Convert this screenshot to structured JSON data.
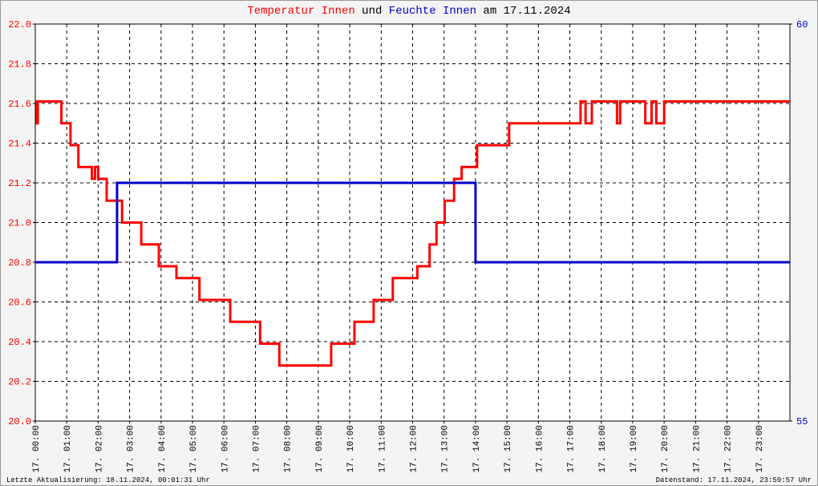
{
  "chart_data": {
    "type": "line",
    "title_connector": "und",
    "title_suffix": "am 17.11.2024",
    "footer_left": "Letzte Aktualisierung: 18.11.2024, 00:01:31 Uhr",
    "footer_right": "Datenstand: 17.11.2024, 23:59:57 Uhr",
    "grid": true,
    "xlim": [
      0,
      24
    ],
    "xticks": [
      {
        "value": 0,
        "label": "17. 00:00"
      },
      {
        "value": 1,
        "label": "17. 01:00"
      },
      {
        "value": 2,
        "label": "17. 02:00"
      },
      {
        "value": 3,
        "label": "17. 03:00"
      },
      {
        "value": 4,
        "label": "17. 04:00"
      },
      {
        "value": 5,
        "label": "17. 05:00"
      },
      {
        "value": 6,
        "label": "17. 06:00"
      },
      {
        "value": 7,
        "label": "17. 07:00"
      },
      {
        "value": 8,
        "label": "17. 08:00"
      },
      {
        "value": 9,
        "label": "17. 09:00"
      },
      {
        "value": 10,
        "label": "17. 10:00"
      },
      {
        "value": 11,
        "label": "17. 11:00"
      },
      {
        "value": 12,
        "label": "17. 12:00"
      },
      {
        "value": 13,
        "label": "17. 13:00"
      },
      {
        "value": 14,
        "label": "17. 14:00"
      },
      {
        "value": 15,
        "label": "17. 15:00"
      },
      {
        "value": 16,
        "label": "17. 16:00"
      },
      {
        "value": 17,
        "label": "17. 17:00"
      },
      {
        "value": 18,
        "label": "17. 18:00"
      },
      {
        "value": 19,
        "label": "17. 19:00"
      },
      {
        "value": 20,
        "label": "17. 20:00"
      },
      {
        "value": 21,
        "label": "17. 21:00"
      },
      {
        "value": 22,
        "label": "17. 22:00"
      },
      {
        "value": 23,
        "label": "17. 23:00"
      }
    ],
    "ylim": [
      20,
      22
    ],
    "yticks": [
      {
        "value": 20,
        "label": "20.0"
      },
      20.2,
      20.4,
      20.6,
      20.8,
      {
        "value": 21,
        "label": "21.0"
      },
      21.2,
      21.4,
      21.6,
      21.8,
      {
        "value": 22,
        "label": "22.0"
      }
    ],
    "y2lim": [
      55,
      60
    ],
    "y2ticks": [
      55,
      60
    ],
    "series": [
      {
        "name": "Temperatur Innen",
        "color": "#ff0000",
        "x": [
          0,
          0.05,
          0.05,
          0.08,
          0.08,
          0.83,
          0.83,
          1.12,
          1.12,
          1.37,
          1.37,
          1.8,
          1.8,
          1.9,
          1.9,
          2.0,
          2.0,
          2.27,
          2.27,
          2.76,
          2.76,
          3.37,
          3.37,
          3.93,
          3.93,
          4.49,
          4.49,
          5.22,
          5.22,
          6.2,
          6.2,
          7.15,
          7.15,
          7.76,
          7.76,
          9.41,
          9.41,
          10.15,
          10.15,
          10.76,
          10.76,
          11.37,
          11.37,
          12.15,
          12.15,
          12.54,
          12.54,
          12.76,
          12.76,
          13.02,
          13.02,
          13.32,
          13.32,
          13.56,
          13.56,
          14.05,
          14.05,
          15.07,
          15.07,
          17.34,
          17.34,
          17.5,
          17.5,
          17.7,
          17.7,
          18.5,
          18.5,
          18.6,
          18.6,
          19.4,
          19.4,
          19.6,
          19.6,
          19.75,
          19.75,
          20.0,
          20.0,
          24
        ],
        "values": [
          21.61,
          21.61,
          21.5,
          21.5,
          21.61,
          21.61,
          21.5,
          21.5,
          21.39,
          21.39,
          21.28,
          21.28,
          21.22,
          21.22,
          21.28,
          21.28,
          21.22,
          21.22,
          21.11,
          21.11,
          21.0,
          21.0,
          20.89,
          20.89,
          20.78,
          20.78,
          20.72,
          20.72,
          20.61,
          20.61,
          20.5,
          20.5,
          20.39,
          20.39,
          20.28,
          20.28,
          20.39,
          20.39,
          20.5,
          20.5,
          20.61,
          20.61,
          20.72,
          20.72,
          20.78,
          20.78,
          20.89,
          20.89,
          21.0,
          21.0,
          21.11,
          21.11,
          21.22,
          21.22,
          21.28,
          21.28,
          21.39,
          21.39,
          21.5,
          21.5,
          21.61,
          21.61,
          21.5,
          21.5,
          21.61,
          21.61,
          21.5,
          21.5,
          21.61,
          21.61,
          21.5,
          21.5,
          21.61,
          21.61,
          21.5,
          21.5,
          21.61,
          21.61
        ]
      },
      {
        "name": "Feuchte Innen",
        "color": "#0000cc",
        "axis": "y2",
        "x": [
          0,
          2.6,
          2.6,
          14.0,
          14.0,
          24
        ],
        "values": [
          57,
          57,
          58,
          58,
          57,
          57
        ]
      }
    ]
  }
}
